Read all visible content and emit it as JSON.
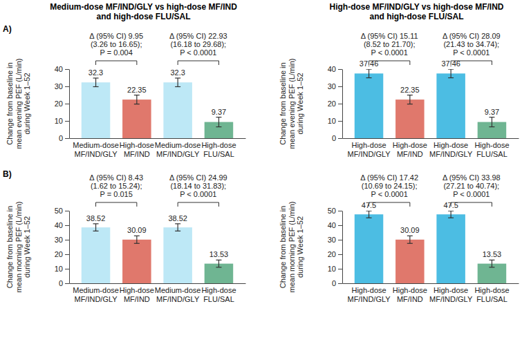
{
  "chart_data": [
    {
      "type": "bar",
      "title": "Medium-dose MF/IND/GLY vs high-dose MF/IND and high-dose FLU/SAL",
      "subtitle": "A)",
      "y_label": "Change from baseline in mean evening PEF (L/min) during Week 1–52",
      "categories": [
        "Medium-dose MF/IND/GLY",
        "High-dose MF/IND",
        "Medium-dose MF/IND/GLY",
        "High-dose FLU/SAL"
      ],
      "values": [
        32.3,
        22.35,
        32.3,
        9.37
      ],
      "errors": [
        2.5,
        2.6,
        2.5,
        2.8
      ],
      "colors": [
        "#bde8f6",
        "#e0786c",
        "#bde8f6",
        "#6fb592"
      ],
      "ylim": [
        0,
        40
      ],
      "yticks": [
        0,
        10,
        20,
        30,
        40
      ],
      "data_labels": true,
      "annotations": [
        [
          "Δ (95% CI) 9.95",
          "(3.26 to 16.65);",
          "P = 0.004"
        ],
        [
          "Δ (95% CI) 22.93",
          "(16.18 to 29.68);",
          "P < 0.0001"
        ]
      ]
    },
    {
      "type": "bar",
      "title": "High-dose MF/IND/GLY vs high-dose MF/IND and high-dose FLU/SAL",
      "y_label": "Change from baseline in mean evening PEF (L/min) during Week 1–52",
      "categories": [
        "High-dose MF/IND/GLY",
        "High-dose MF/IND",
        "High-dose MF/IND/GLY",
        "High-dose FLU/SAL"
      ],
      "values": [
        37.46,
        22.35,
        37.46,
        9.37
      ],
      "errors": [
        2.5,
        2.6,
        2.5,
        2.8
      ],
      "colors": [
        "#4cbde3",
        "#e0786c",
        "#4cbde3",
        "#6fb592"
      ],
      "ylim": [
        0,
        40
      ],
      "yticks": [
        0,
        10,
        20,
        30,
        40
      ],
      "data_labels": true,
      "annotations": [
        [
          "Δ (95% CI) 15.11",
          "(8.52 to 21.70);",
          "P < 0.0001"
        ],
        [
          "Δ (95% CI) 28.09",
          "(21.43 to 34.74);",
          "P < 0.0001"
        ]
      ]
    },
    {
      "type": "bar",
      "subtitle": "B)",
      "y_label": "Change from baseline in mean morning PEF (L/min) during Week 1–52",
      "categories": [
        "Medium-dose MF/IND/GLY",
        "High-dose MF/IND",
        "Medium-dose MF/IND/GLY",
        "High-dose FLU/SAL"
      ],
      "values": [
        38.52,
        30.09,
        38.52,
        13.53
      ],
      "errors": [
        2.5,
        2.6,
        2.5,
        2.5
      ],
      "colors": [
        "#bde8f6",
        "#e0786c",
        "#bde8f6",
        "#6fb592"
      ],
      "ylim": [
        0,
        50
      ],
      "yticks": [
        0,
        10,
        20,
        30,
        40,
        50
      ],
      "data_labels": true,
      "annotations": [
        [
          "Δ (95% CI) 8.43",
          "(1.62 to 15.24);",
          "P = 0.015"
        ],
        [
          "Δ (95% CI) 24.99",
          "(18.14 to 31.83);",
          "P < 0.0001"
        ]
      ]
    },
    {
      "type": "bar",
      "y_label": "Change from baseline in mean morning PEF (L/min) during Week 1–52",
      "categories": [
        "High-dose MF/IND/GLY",
        "High-dose MF/IND",
        "High-dose MF/IND/GLY",
        "High-dose FLU/SAL"
      ],
      "values": [
        47.5,
        30.09,
        47.5,
        13.53
      ],
      "errors": [
        2.4,
        2.6,
        2.4,
        2.5
      ],
      "colors": [
        "#4cbde3",
        "#e0786c",
        "#4cbde3",
        "#6fb592"
      ],
      "ylim": [
        0,
        50
      ],
      "yticks": [
        0,
        10,
        20,
        30,
        40,
        50
      ],
      "data_labels": true,
      "annotations": [
        [
          "Δ (95% CI) 17.42",
          "(10.69 to 24.15);",
          "P < 0.0001"
        ],
        [
          "Δ (95% CI) 33.98",
          "(27.21 to 40.74);",
          "P < 0.0001"
        ]
      ]
    }
  ]
}
